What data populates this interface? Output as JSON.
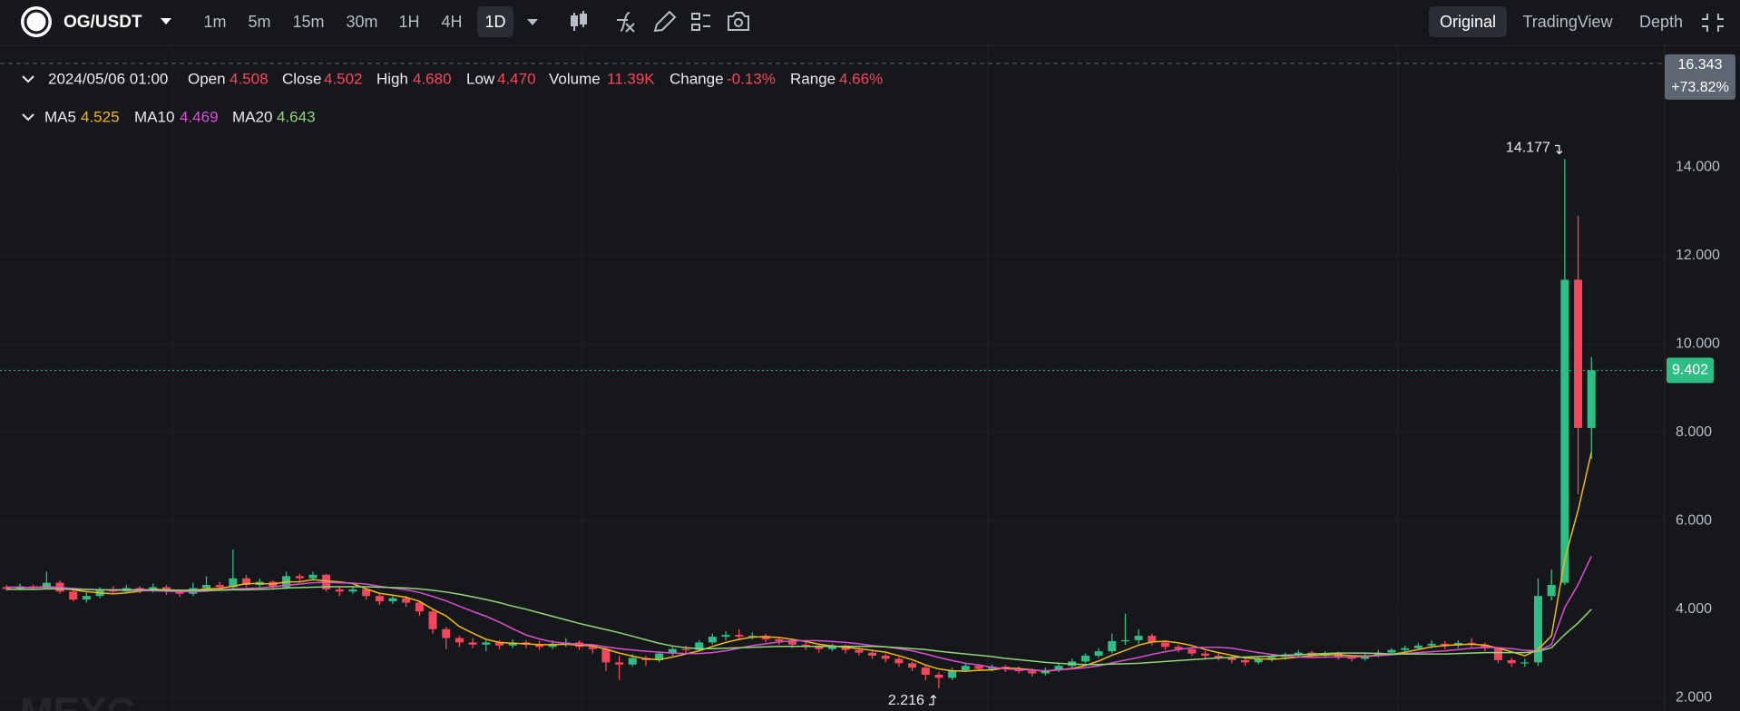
{
  "toolbar": {
    "symbol": "OG/USDT",
    "intervals": [
      "1m",
      "5m",
      "15m",
      "30m",
      "1H",
      "4H",
      "1D"
    ],
    "active_interval": "1D",
    "views": [
      "Original",
      "TradingView",
      "Depth"
    ],
    "active_view": "Original"
  },
  "readout": {
    "time": "2024/05/06 01:00",
    "fields": [
      {
        "label": "Open",
        "value": "4.508"
      },
      {
        "label": "Close",
        "value": "4.502"
      },
      {
        "label": "High",
        "value": "4.680"
      },
      {
        "label": "Low",
        "value": "4.470"
      },
      {
        "label": "Volume",
        "value": "11.39K"
      },
      {
        "label": "Change",
        "value": "-0.13%"
      },
      {
        "label": "Range",
        "value": "4.66%"
      }
    ],
    "ma_values": [
      "4.525",
      "4.469",
      "4.643"
    ]
  },
  "watermark": "MEXC",
  "chart_data": {
    "type": "candlestick",
    "up_color": "#2ebd85",
    "down_color": "#f6465d",
    "ylim": [
      1.7,
      16.75
    ],
    "yticks": [
      {
        "value": 2,
        "label": "2.000"
      },
      {
        "value": 4,
        "label": "4.000"
      },
      {
        "value": 6,
        "label": "6.000"
      },
      {
        "value": 8,
        "label": "8.000"
      },
      {
        "value": 10,
        "label": "10.000"
      },
      {
        "value": 12,
        "label": "12.000"
      },
      {
        "value": 14,
        "label": "14.000"
      }
    ],
    "grid": true,
    "crosshair": {
      "value": 16.343,
      "change": "+73.82%"
    },
    "open": [
      4.5,
      4.46,
      4.52,
      4.48,
      4.6,
      4.4,
      4.22,
      4.3,
      4.45,
      4.4,
      4.48,
      4.42,
      4.5,
      4.4,
      4.35,
      4.48,
      4.55,
      4.5,
      4.7,
      4.55,
      4.62,
      4.5,
      4.75,
      4.7,
      4.78,
      4.45,
      4.4,
      4.45,
      4.3,
      4.18,
      4.25,
      4.15,
      3.95,
      3.55,
      3.35,
      3.25,
      3.2,
      3.25,
      3.18,
      3.25,
      3.2,
      3.15,
      3.22,
      3.25,
      3.15,
      3.1,
      2.8,
      2.75,
      2.9,
      2.85,
      3.0,
      3.1,
      3.08,
      3.25,
      3.38,
      3.42,
      3.38,
      3.4,
      3.32,
      3.28,
      3.2,
      3.15,
      3.1,
      3.18,
      3.08,
      3.02,
      2.95,
      2.88,
      2.78,
      2.68,
      2.52,
      2.45,
      2.62,
      2.72,
      2.65,
      2.7,
      2.65,
      2.6,
      2.55,
      2.62,
      2.72,
      2.82,
      2.95,
      3.05,
      3.28,
      3.3,
      3.4,
      3.25,
      3.15,
      3.1,
      3.0,
      2.95,
      2.9,
      2.85,
      2.8,
      2.88,
      2.92,
      2.98,
      3.02,
      2.95,
      3.0,
      2.92,
      2.88,
      2.96,
      3.02,
      3.08,
      3.12,
      3.18,
      3.22,
      3.18,
      3.24,
      3.2,
      3.12,
      2.85,
      2.78,
      2.8,
      4.3,
      4.6,
      11.45,
      8.1
    ],
    "high": [
      4.55,
      4.58,
      4.56,
      4.85,
      4.65,
      4.45,
      4.38,
      4.5,
      4.52,
      4.55,
      4.52,
      4.58,
      4.55,
      4.45,
      4.6,
      4.75,
      4.62,
      5.35,
      4.78,
      4.7,
      4.66,
      4.85,
      4.8,
      4.85,
      4.8,
      4.52,
      4.5,
      4.48,
      4.35,
      4.3,
      4.3,
      4.2,
      4.0,
      3.6,
      3.4,
      3.35,
      3.3,
      3.3,
      3.32,
      3.3,
      3.28,
      3.3,
      3.35,
      3.3,
      3.2,
      3.15,
      2.95,
      2.98,
      2.95,
      3.05,
      3.15,
      3.18,
      3.3,
      3.45,
      3.5,
      3.55,
      3.48,
      3.45,
      3.38,
      3.32,
      3.25,
      3.2,
      3.22,
      3.2,
      3.12,
      3.08,
      3.0,
      2.92,
      2.82,
      2.72,
      2.58,
      2.68,
      2.78,
      2.76,
      2.75,
      2.74,
      2.7,
      2.66,
      2.68,
      2.78,
      2.88,
      3.0,
      3.12,
      3.45,
      3.9,
      3.55,
      3.45,
      3.3,
      3.2,
      3.15,
      3.05,
      3.0,
      2.95,
      2.9,
      2.92,
      2.98,
      3.02,
      3.08,
      3.06,
      3.05,
      3.04,
      2.96,
      3.0,
      3.08,
      3.12,
      3.18,
      3.24,
      3.3,
      3.28,
      3.3,
      3.35,
      3.25,
      3.15,
      2.9,
      2.88,
      4.7,
      4.9,
      14.177,
      12.9,
      9.7
    ],
    "low": [
      4.42,
      4.43,
      4.44,
      4.45,
      4.35,
      4.18,
      4.15,
      4.25,
      4.35,
      4.36,
      4.36,
      4.38,
      4.32,
      4.28,
      4.3,
      4.42,
      4.45,
      4.45,
      4.5,
      4.5,
      4.44,
      4.45,
      4.62,
      4.65,
      4.4,
      4.3,
      4.35,
      4.22,
      4.1,
      4.12,
      4.05,
      3.85,
      3.45,
      3.1,
      3.15,
      3.12,
      3.05,
      3.1,
      3.12,
      3.12,
      3.08,
      3.1,
      3.15,
      3.08,
      3.0,
      2.6,
      2.4,
      2.7,
      2.72,
      2.8,
      2.95,
      3.0,
      3.05,
      3.2,
      3.3,
      3.3,
      3.32,
      3.25,
      3.2,
      3.12,
      3.08,
      3.02,
      3.05,
      3.0,
      2.95,
      2.88,
      2.8,
      2.7,
      2.6,
      2.4,
      2.216,
      2.4,
      2.58,
      2.6,
      2.6,
      2.58,
      2.55,
      2.48,
      2.5,
      2.58,
      2.68,
      2.78,
      2.9,
      3.0,
      3.2,
      3.22,
      3.18,
      3.08,
      3.02,
      2.95,
      2.88,
      2.84,
      2.78,
      2.72,
      2.75,
      2.82,
      2.86,
      2.92,
      2.9,
      2.9,
      2.86,
      2.82,
      2.84,
      2.92,
      2.98,
      3.02,
      3.08,
      3.12,
      3.1,
      3.12,
      3.14,
      3.05,
      2.78,
      2.7,
      2.7,
      2.72,
      4.2,
      4.55,
      6.6,
      7.4
    ],
    "close": [
      4.46,
      4.52,
      4.48,
      4.6,
      4.4,
      4.22,
      4.3,
      4.45,
      4.4,
      4.48,
      4.42,
      4.5,
      4.4,
      4.35,
      4.48,
      4.55,
      4.5,
      4.7,
      4.55,
      4.62,
      4.5,
      4.75,
      4.7,
      4.78,
      4.45,
      4.4,
      4.45,
      4.3,
      4.18,
      4.25,
      4.15,
      3.95,
      3.55,
      3.35,
      3.25,
      3.2,
      3.25,
      3.18,
      3.25,
      3.2,
      3.15,
      3.22,
      3.25,
      3.15,
      3.1,
      2.8,
      2.75,
      2.9,
      2.85,
      3.0,
      3.1,
      3.08,
      3.25,
      3.38,
      3.42,
      3.38,
      3.4,
      3.32,
      3.28,
      3.2,
      3.15,
      3.1,
      3.18,
      3.08,
      3.02,
      2.95,
      2.88,
      2.78,
      2.68,
      2.52,
      2.45,
      2.62,
      2.72,
      2.65,
      2.7,
      2.65,
      2.6,
      2.55,
      2.62,
      2.72,
      2.82,
      2.95,
      3.05,
      3.28,
      3.3,
      3.4,
      3.25,
      3.15,
      3.1,
      3.0,
      2.95,
      2.9,
      2.85,
      2.8,
      2.88,
      2.92,
      2.98,
      3.02,
      2.95,
      3.0,
      2.92,
      2.88,
      2.96,
      3.02,
      3.08,
      3.12,
      3.18,
      3.22,
      3.18,
      3.24,
      3.2,
      3.12,
      2.85,
      2.78,
      2.8,
      4.3,
      4.55,
      11.45,
      8.1,
      9.402
    ],
    "series": [
      {
        "name": "MA5",
        "color": "#f0b90b",
        "values": [
          4.5,
          4.49,
          4.49,
          4.51,
          4.49,
          4.44,
          4.4,
          4.37,
          4.35,
          4.37,
          4.41,
          4.45,
          4.44,
          4.43,
          4.43,
          4.46,
          4.47,
          4.52,
          4.58,
          4.58,
          4.57,
          4.62,
          4.62,
          4.67,
          4.64,
          4.62,
          4.58,
          4.46,
          4.36,
          4.32,
          4.27,
          4.18,
          4.0,
          3.85,
          3.61,
          3.46,
          3.32,
          3.25,
          3.23,
          3.22,
          3.2,
          3.2,
          3.21,
          3.19,
          3.17,
          3.1,
          3.01,
          2.94,
          2.88,
          2.86,
          2.92,
          2.99,
          3.06,
          3.16,
          3.25,
          3.32,
          3.37,
          3.38,
          3.36,
          3.32,
          3.27,
          3.21,
          3.17,
          3.14,
          3.11,
          3.07,
          3.03,
          2.95,
          2.86,
          2.74,
          2.65,
          2.61,
          2.6,
          2.62,
          2.63,
          2.67,
          2.66,
          2.63,
          2.6,
          2.63,
          2.66,
          2.73,
          2.83,
          2.96,
          3.07,
          3.19,
          3.26,
          3.28,
          3.24,
          3.18,
          3.09,
          3.02,
          2.96,
          2.9,
          2.88,
          2.87,
          2.89,
          2.92,
          2.95,
          2.97,
          2.97,
          2.95,
          2.94,
          2.96,
          2.98,
          3.03,
          3.09,
          3.15,
          3.18,
          3.2,
          3.21,
          3.19,
          3.12,
          3.04,
          2.95,
          3.09,
          3.4,
          5.13,
          6.24,
          7.55
        ]
      },
      {
        "name": "MA10",
        "color": "#d94fd3",
        "values": [
          4.5,
          4.5,
          4.49,
          4.5,
          4.49,
          4.47,
          4.45,
          4.44,
          4.43,
          4.43,
          4.42,
          4.42,
          4.41,
          4.4,
          4.4,
          4.41,
          4.44,
          4.46,
          4.47,
          4.48,
          4.51,
          4.54,
          4.57,
          4.6,
          4.61,
          4.6,
          4.59,
          4.57,
          4.52,
          4.48,
          4.44,
          4.38,
          4.29,
          4.19,
          4.07,
          3.95,
          3.84,
          3.71,
          3.56,
          3.42,
          3.33,
          3.26,
          3.23,
          3.21,
          3.2,
          3.15,
          3.11,
          3.08,
          3.05,
          3.03,
          3.01,
          3.0,
          3.0,
          3.02,
          3.06,
          3.12,
          3.18,
          3.22,
          3.26,
          3.29,
          3.29,
          3.29,
          3.27,
          3.25,
          3.22,
          3.18,
          3.15,
          3.11,
          3.06,
          2.99,
          2.91,
          2.84,
          2.78,
          2.74,
          2.69,
          2.65,
          2.64,
          2.62,
          2.61,
          2.63,
          2.65,
          2.68,
          2.72,
          2.79,
          2.85,
          2.91,
          2.98,
          3.04,
          3.09,
          3.13,
          3.14,
          3.14,
          3.12,
          3.07,
          3.02,
          2.98,
          2.94,
          2.92,
          2.91,
          2.92,
          2.92,
          2.92,
          2.93,
          2.95,
          2.97,
          3.0,
          3.02,
          3.04,
          3.06,
          3.09,
          3.12,
          3.14,
          3.13,
          3.11,
          3.07,
          3.06,
          3.2,
          4.04,
          4.56,
          5.2
        ]
      },
      {
        "name": "MA20",
        "color": "#8fd67a",
        "values": [
          4.45,
          4.45,
          4.45,
          4.46,
          4.46,
          4.45,
          4.45,
          4.44,
          4.44,
          4.44,
          4.44,
          4.44,
          4.43,
          4.43,
          4.43,
          4.43,
          4.43,
          4.44,
          4.44,
          4.45,
          4.46,
          4.48,
          4.49,
          4.5,
          4.51,
          4.51,
          4.51,
          4.51,
          4.5,
          4.49,
          4.48,
          4.46,
          4.43,
          4.39,
          4.34,
          4.28,
          4.22,
          4.15,
          4.07,
          4.0,
          3.92,
          3.84,
          3.76,
          3.68,
          3.61,
          3.54,
          3.47,
          3.39,
          3.31,
          3.23,
          3.17,
          3.13,
          3.11,
          3.11,
          3.12,
          3.13,
          3.14,
          3.15,
          3.16,
          3.16,
          3.16,
          3.16,
          3.16,
          3.16,
          3.16,
          3.16,
          3.15,
          3.13,
          3.11,
          3.09,
          3.05,
          3.02,
          2.99,
          2.96,
          2.93,
          2.89,
          2.86,
          2.83,
          2.8,
          2.78,
          2.76,
          2.75,
          2.75,
          2.76,
          2.77,
          2.78,
          2.8,
          2.82,
          2.84,
          2.86,
          2.88,
          2.9,
          2.91,
          2.92,
          2.93,
          2.94,
          2.96,
          2.97,
          2.99,
          3.0,
          3.01,
          3.01,
          3.01,
          3.0,
          2.99,
          2.99,
          2.99,
          2.99,
          2.99,
          3.0,
          3.01,
          3.02,
          3.02,
          3.02,
          3.02,
          3.05,
          3.13,
          3.43,
          3.69,
          4.0
        ]
      }
    ]
  }
}
